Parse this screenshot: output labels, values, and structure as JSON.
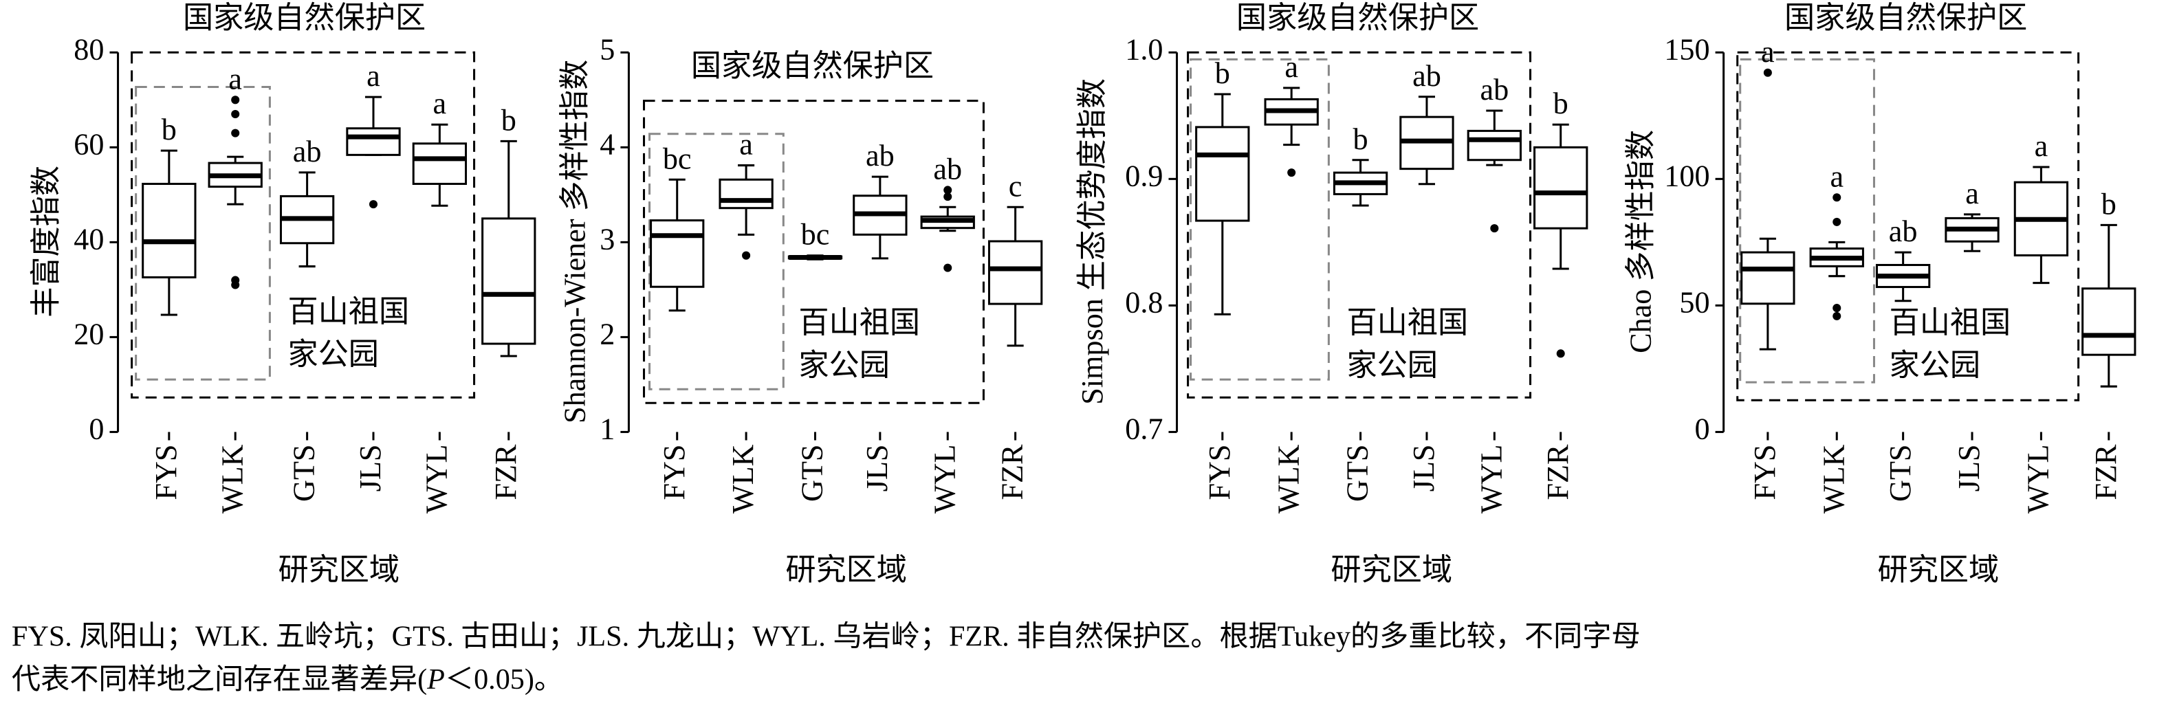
{
  "chart_data": [
    {
      "type": "box",
      "ylabel": "丰富度指数",
      "xlabel": "研究区域",
      "outer_label": "国家级自然保护区",
      "inner_label": [
        "百山祖国",
        "家公园"
      ],
      "categories": [
        "FYS",
        "WLK",
        "GTS",
        "JLS",
        "WYL",
        "FZR"
      ],
      "boxes": [
        {
          "min": 24.7,
          "q1": 32.6,
          "median": 40.1,
          "q3": 52.3,
          "max": 59.3,
          "outliers": []
        },
        {
          "min": 48,
          "q1": 51.7,
          "median": 54,
          "q3": 56.7,
          "max": 58,
          "outliers": [
            70,
            67,
            63,
            32,
            31
          ]
        },
        {
          "min": 34.9,
          "q1": 39.8,
          "median": 45,
          "q3": 49.7,
          "max": 54.7,
          "outliers": []
        },
        {
          "min": 58.4,
          "q1": 58.4,
          "median": 62.2,
          "q3": 64,
          "max": 70.6,
          "outliers": [
            48
          ]
        },
        {
          "min": 47.7,
          "q1": 52.3,
          "median": 57.6,
          "q3": 60.8,
          "max": 64.8,
          "outliers": []
        },
        {
          "min": 16,
          "q1": 18.6,
          "median": 29,
          "q3": 45,
          "max": 61.3,
          "outliers": []
        }
      ],
      "letters": [
        "b",
        "a",
        "ab",
        "a",
        "a",
        "b"
      ],
      "ylim": [
        0,
        80
      ],
      "yticks": [
        0,
        20,
        40,
        60,
        80
      ]
    },
    {
      "type": "box",
      "ylabel": "Shannon-Wiener 多样性指数",
      "xlabel": "研究区域",
      "outer_label": "国家级自然保护区",
      "inner_label": [
        "百山祖国",
        "家公园"
      ],
      "categories": [
        "FYS",
        "WLK",
        "GTS",
        "JLS",
        "WYL",
        "FZR"
      ],
      "boxes": [
        {
          "min": 2.28,
          "q1": 2.53,
          "median": 3.07,
          "q3": 3.23,
          "max": 3.66,
          "outliers": []
        },
        {
          "min": 3.08,
          "q1": 3.36,
          "median": 3.44,
          "q3": 3.66,
          "max": 3.81,
          "outliers": [
            2.86
          ]
        },
        {
          "min": 2.82,
          "q1": 2.83,
          "median": 2.84,
          "q3": 2.85,
          "max": 2.86,
          "outliers": []
        },
        {
          "min": 2.83,
          "q1": 3.08,
          "median": 3.3,
          "q3": 3.49,
          "max": 3.69,
          "outliers": []
        },
        {
          "min": 3.12,
          "q1": 3.15,
          "median": 3.23,
          "q3": 3.27,
          "max": 3.37,
          "outliers": [
            3.55,
            3.48,
            2.73
          ]
        },
        {
          "min": 1.91,
          "q1": 2.35,
          "median": 2.72,
          "q3": 3.01,
          "max": 3.37,
          "outliers": []
        }
      ],
      "letters": [
        "bc",
        "a",
        "bc",
        "ab",
        "ab",
        "c"
      ],
      "ylim": [
        1,
        5
      ],
      "yticks": [
        1,
        2,
        3,
        4,
        5
      ]
    },
    {
      "type": "box",
      "ylabel": "Simpson 生态优势度指数",
      "xlabel": "研究区域",
      "outer_label": "国家级自然保护区",
      "inner_label": [
        "百山祖国",
        "家公园"
      ],
      "categories": [
        "FYS",
        "WLK",
        "GTS",
        "JLS",
        "WYL",
        "FZR"
      ],
      "boxes": [
        {
          "min": 0.793,
          "q1": 0.867,
          "median": 0.919,
          "q3": 0.941,
          "max": 0.967,
          "outliers": []
        },
        {
          "min": 0.927,
          "q1": 0.943,
          "median": 0.954,
          "q3": 0.963,
          "max": 0.972,
          "outliers": [
            0.905
          ]
        },
        {
          "min": 0.879,
          "q1": 0.888,
          "median": 0.897,
          "q3": 0.905,
          "max": 0.915,
          "outliers": []
        },
        {
          "min": 0.896,
          "q1": 0.908,
          "median": 0.93,
          "q3": 0.949,
          "max": 0.965,
          "outliers": []
        },
        {
          "min": 0.911,
          "q1": 0.915,
          "median": 0.931,
          "q3": 0.938,
          "max": 0.954,
          "outliers": [
            0.861
          ]
        },
        {
          "min": 0.829,
          "q1": 0.861,
          "median": 0.889,
          "q3": 0.925,
          "max": 0.943,
          "outliers": [
            0.762
          ]
        }
      ],
      "letters": [
        "b",
        "a",
        "b",
        "ab",
        "ab",
        "b"
      ],
      "ylim": [
        0.7,
        1
      ],
      "yticks": [
        0.7,
        0.8,
        0.9,
        {
          "value": 1,
          "label": "1.0"
        }
      ]
    },
    {
      "type": "box",
      "ylabel": "Chao 多样性指数",
      "xlabel": "研究区域",
      "outer_label": "国家级自然保护区",
      "inner_label": [
        "百山祖国",
        "家公园"
      ],
      "categories": [
        "FYS",
        "WLK",
        "GTS",
        "JLS",
        "WYL",
        "FZR"
      ],
      "boxes": [
        {
          "min": 32.7,
          "q1": 50.7,
          "median": 64.4,
          "q3": 71,
          "max": 76.4,
          "outliers": [
            142
          ]
        },
        {
          "min": 61.6,
          "q1": 65.5,
          "median": 68.7,
          "q3": 72.5,
          "max": 75,
          "outliers": [
            92.7,
            83,
            49,
            45.8
          ]
        },
        {
          "min": 51.8,
          "q1": 57.3,
          "median": 61.6,
          "q3": 66,
          "max": 71,
          "outliers": []
        },
        {
          "min": 71.5,
          "q1": 75.3,
          "median": 80.2,
          "q3": 84.5,
          "max": 86,
          "outliers": []
        },
        {
          "min": 58.9,
          "q1": 69.8,
          "median": 84,
          "q3": 98.7,
          "max": 104.7,
          "outliers": []
        },
        {
          "min": 18,
          "q1": 30.5,
          "median": 38.2,
          "q3": 56.7,
          "max": 81.8,
          "outliers": []
        }
      ],
      "letters": [
        "a",
        "a",
        "ab",
        "a",
        "a",
        "b"
      ],
      "ylim": [
        0,
        150
      ],
      "yticks": [
        0,
        50,
        100,
        150
      ]
    }
  ],
  "caption": [
    "FYS. 凤阳山；WLK. 五岭坑；GTS. 古田山；JLS. 九龙山；WYL. 乌岩岭；FZR. 非自然保护区。根据Tukey的多重比较，不同字母",
    "代表不同样地之间存在显著差异(",
    "P",
    "＜0.05)。"
  ]
}
